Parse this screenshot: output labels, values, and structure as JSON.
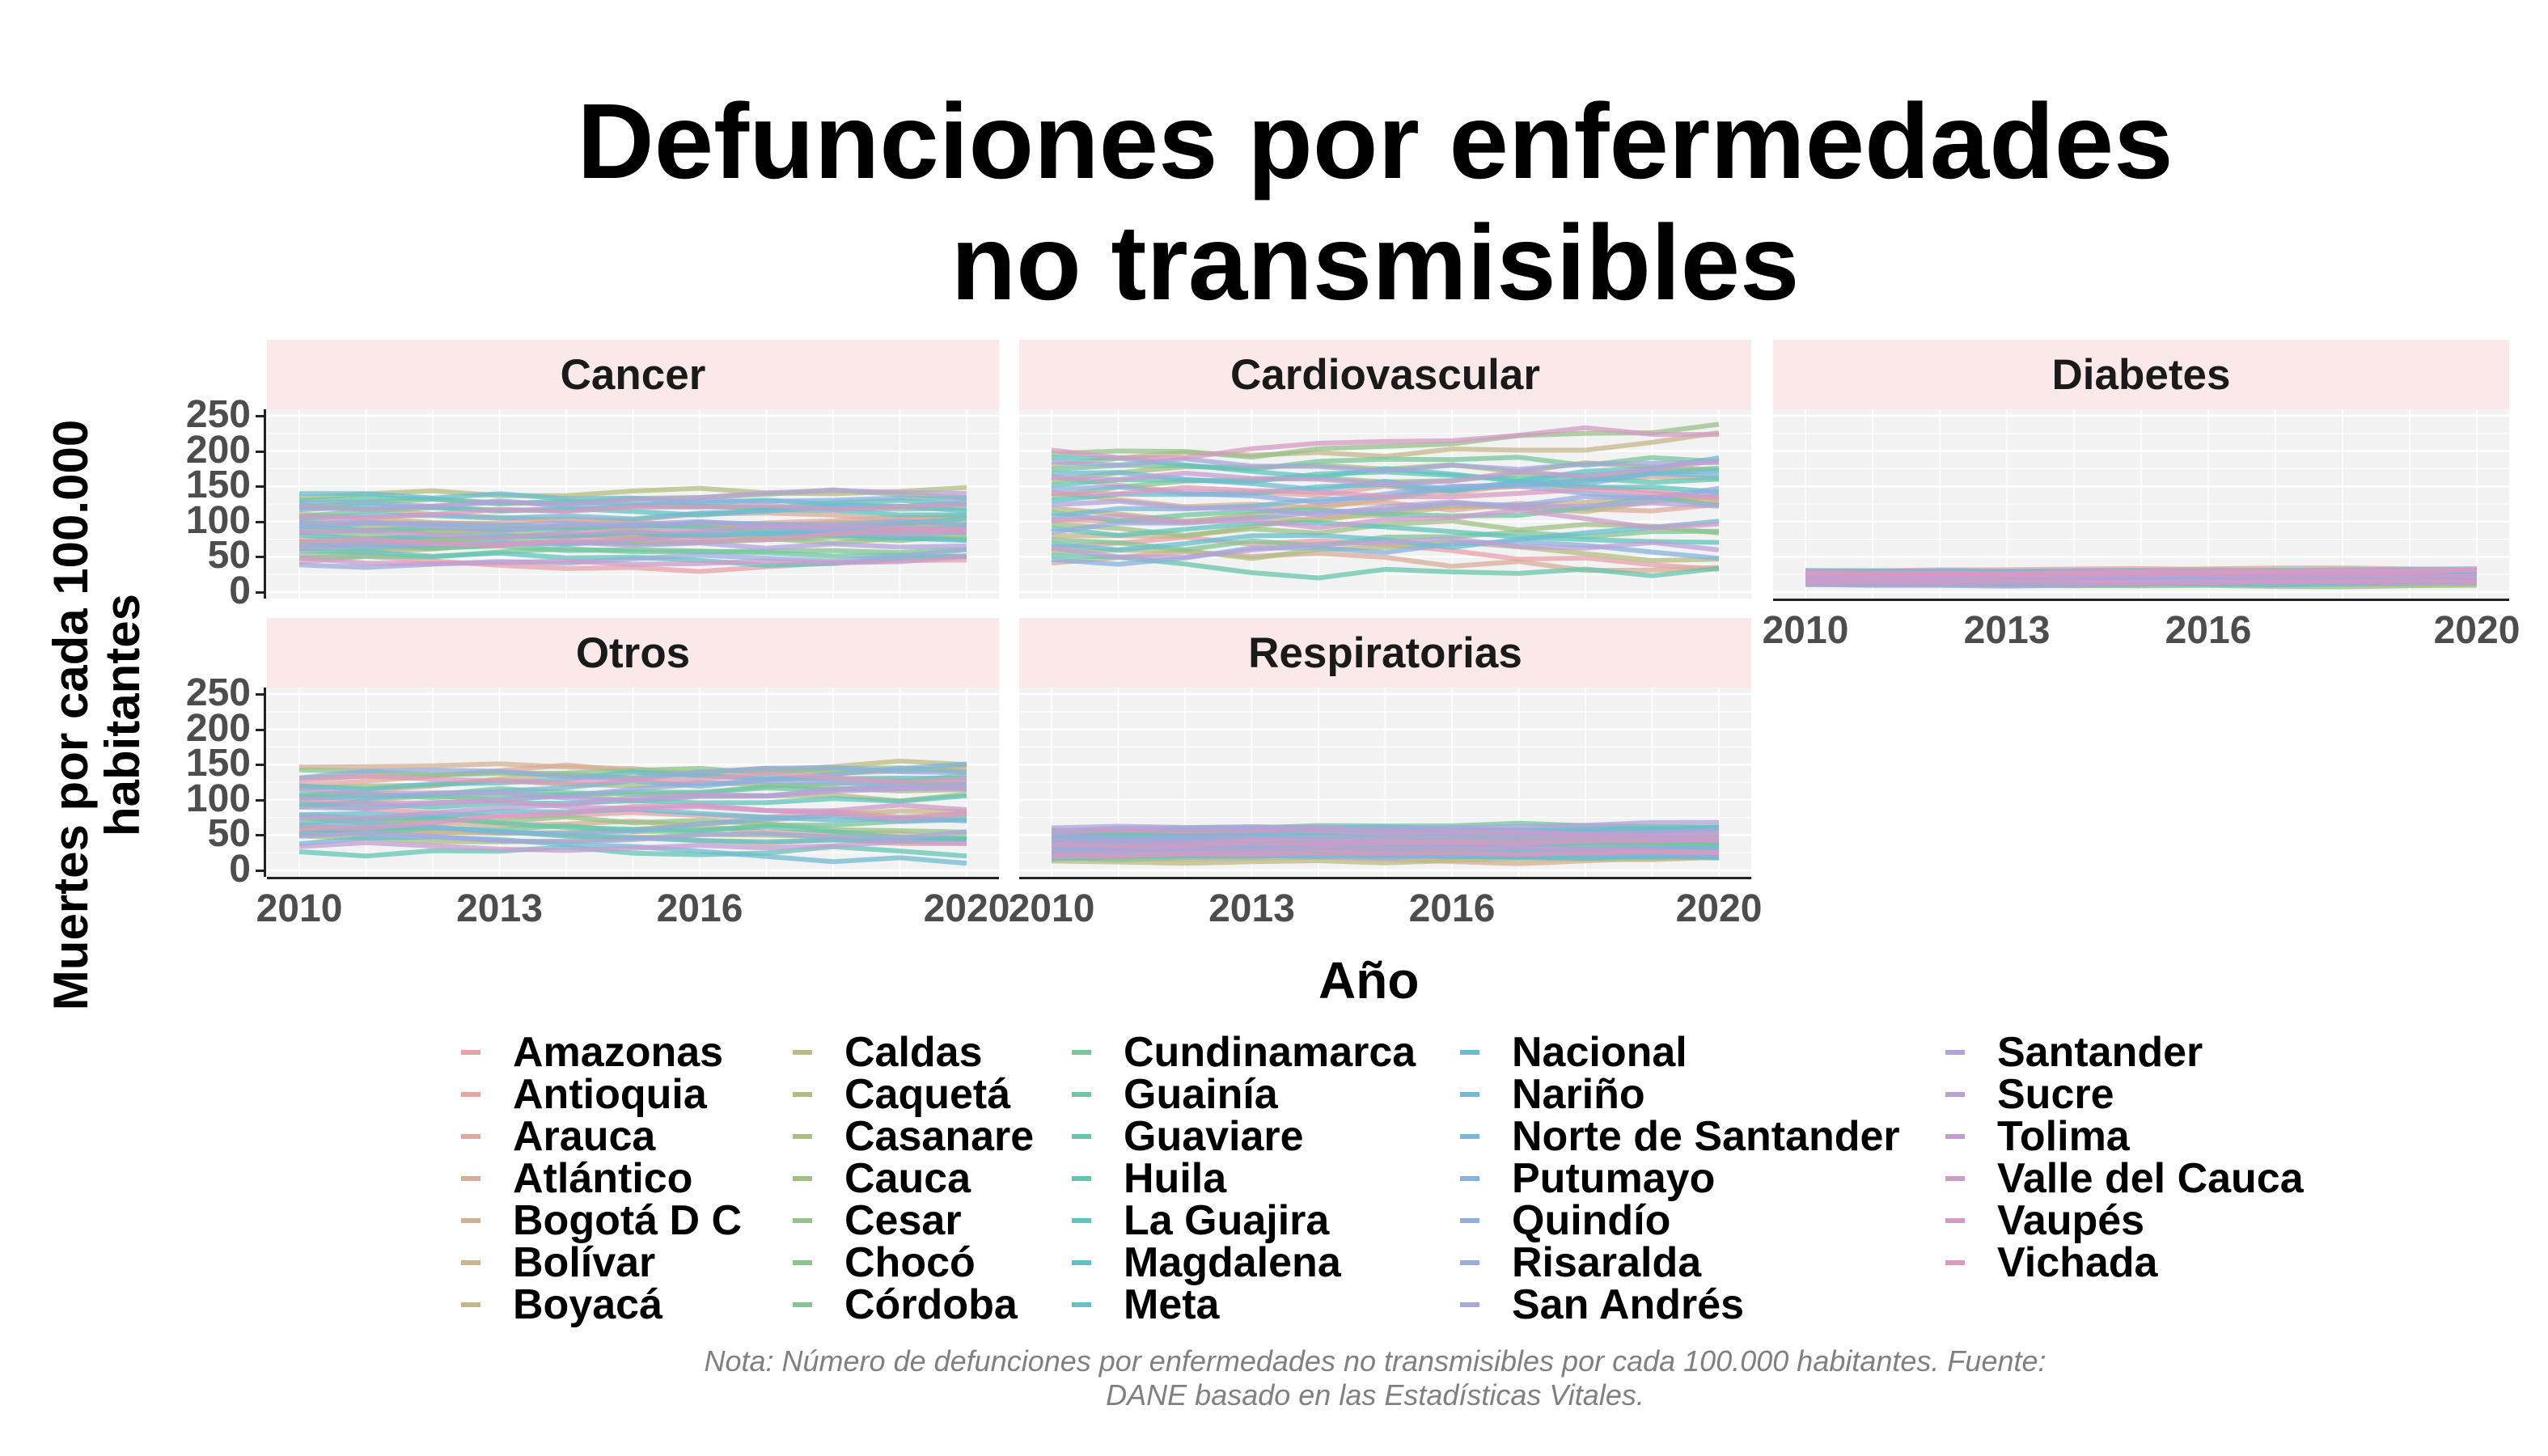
{
  "title_lines": [
    "Defunciones por enfermedades",
    "no transmisibles"
  ],
  "ylabel_lines": [
    "Muertes por cada 100.000",
    "habitantes"
  ],
  "xlabel": "Año",
  "note_lines": [
    "Nota: Número de defunciones por enfermedades no transmisibles por cada 100.000 habitantes. Fuente:",
    "DANE basado en las Estadísticas Vitales."
  ],
  "chart_data": {
    "type": "line",
    "facets": [
      "Cancer",
      "Cardiovascular",
      "Diabetes",
      "Otros",
      "Respiratorias"
    ],
    "x_ticks": [
      "2010",
      "2013",
      "2016",
      "2020"
    ],
    "y_ticks": [
      "0",
      "50",
      "100",
      "150",
      "200",
      "250"
    ],
    "xlim": [
      2010,
      2020
    ],
    "ylim": [
      0,
      250
    ],
    "grid": true,
    "legend_position": "bottom",
    "series_ranges": {
      "Cancer": [
        20,
        155
      ],
      "Cardiovascular": [
        15,
        245
      ],
      "Diabetes": [
        5,
        35
      ],
      "Otros": [
        10,
        165
      ],
      "Respiratorias": [
        5,
        70
      ]
    }
  },
  "legend": [
    {
      "name": "Amazonas",
      "color": "#e7a2a8"
    },
    {
      "name": "Antioquia",
      "color": "#e3a7a4"
    },
    {
      "name": "Arauca",
      "color": "#e0a89e"
    },
    {
      "name": "Atlántico",
      "color": "#d9ac98"
    },
    {
      "name": "Bogotá D C",
      "color": "#d3b093"
    },
    {
      "name": "Bolívar",
      "color": "#cbb38e"
    },
    {
      "name": "Boyacá",
      "color": "#c4b68a"
    },
    {
      "name": "Caldas",
      "color": "#bcb985"
    },
    {
      "name": "Caquetá",
      "color": "#b3bc82"
    },
    {
      "name": "Casanare",
      "color": "#a9be82"
    },
    {
      "name": "Cauca",
      "color": "#a0c084"
    },
    {
      "name": "Cesar",
      "color": "#96c288"
    },
    {
      "name": "Chocó",
      "color": "#8cc48d"
    },
    {
      "name": "Córdoba",
      "color": "#82c593"
    },
    {
      "name": "Cundinamarca",
      "color": "#78c69b"
    },
    {
      "name": "Guainía",
      "color": "#6fc6a3"
    },
    {
      "name": "Guaviare",
      "color": "#67c6ab"
    },
    {
      "name": "Huila",
      "color": "#62c5b3"
    },
    {
      "name": "La Guajira",
      "color": "#5fc4bb"
    },
    {
      "name": "Magdalena",
      "color": "#5fc2c2"
    },
    {
      "name": "Meta",
      "color": "#62c0c9"
    },
    {
      "name": "Nacional",
      "color": "#68bdcf"
    },
    {
      "name": "Nariño",
      "color": "#70bad4"
    },
    {
      "name": "Norte de Santander",
      "color": "#7ab7d8"
    },
    {
      "name": "Putumayo",
      "color": "#85b3db"
    },
    {
      "name": "Quindío",
      "color": "#90afdd"
    },
    {
      "name": "Risaralda",
      "color": "#9babdd"
    },
    {
      "name": "San Andrés",
      "color": "#a6a7dc"
    },
    {
      "name": "Santander",
      "color": "#b1a3da"
    },
    {
      "name": "Sucre",
      "color": "#bba0d6"
    },
    {
      "name": "Tolima",
      "color": "#c49dd1"
    },
    {
      "name": "Valle del Cauca",
      "color": "#cd9bcb"
    },
    {
      "name": "Vaupés",
      "color": "#d59ac4"
    },
    {
      "name": "Vichada",
      "color": "#dc99bd"
    }
  ]
}
